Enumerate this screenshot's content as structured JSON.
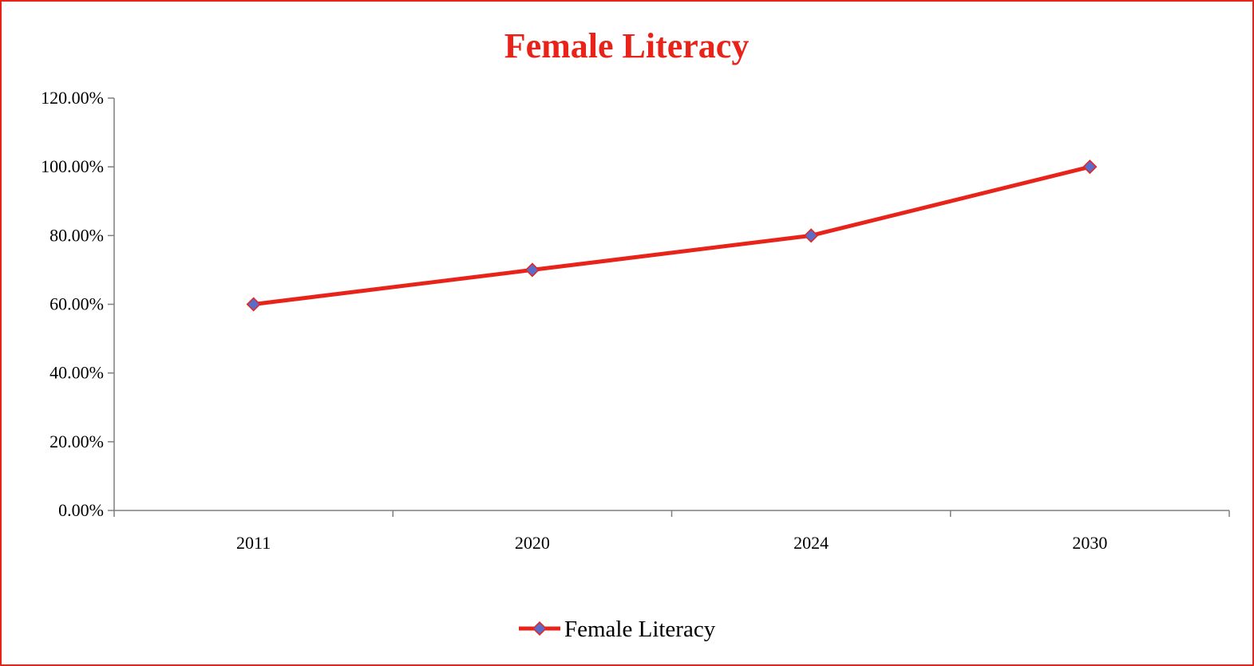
{
  "chart_data": {
    "type": "line",
    "title": "Female Literacy",
    "categories": [
      "2011",
      "2020",
      "2024",
      "2030"
    ],
    "series": [
      {
        "name": "Female Literacy",
        "values": [
          60,
          70,
          80,
          100
        ],
        "line_color": "#e8231a",
        "marker": "diamond",
        "marker_fill": "#5b6bc9",
        "marker_stroke": "#e8231a"
      }
    ],
    "y_ticks": [
      "0.00%",
      "20.00%",
      "40.00%",
      "60.00%",
      "80.00%",
      "100.00%",
      "120.00%"
    ],
    "ylim": [
      0,
      120
    ],
    "y_tick_step": 20,
    "grid": false,
    "legend_position": "bottom",
    "xlabel": "",
    "ylabel": ""
  },
  "colors": {
    "title": "#e8231a",
    "border": "#e8231a",
    "axis": "#7f7f7f"
  }
}
